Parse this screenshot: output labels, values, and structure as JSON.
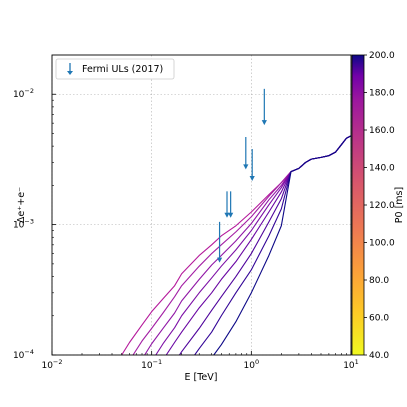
{
  "chart_data": {
    "type": "line",
    "xlabel": "E [TeV]",
    "ylabel": "Δe⁺+e⁻",
    "x_scale": "log",
    "y_scale": "log",
    "xlim": [
      0.01,
      10
    ],
    "ylim": [
      0.0001,
      0.02
    ],
    "grid": true,
    "legend_position": "top-left",
    "x_ticks": [
      {
        "value": 0.01,
        "base": "10",
        "exp": "−2"
      },
      {
        "value": 0.1,
        "base": "10",
        "exp": "−1"
      },
      {
        "value": 1,
        "base": "10",
        "exp": "0"
      },
      {
        "value": 10,
        "base": "10",
        "exp": "1"
      }
    ],
    "y_ticks": [
      {
        "value": 0.0001,
        "base": "10",
        "exp": "−4"
      },
      {
        "value": 0.001,
        "base": "10",
        "exp": "−3"
      },
      {
        "value": 0.01,
        "base": "10",
        "exp": "−2"
      }
    ],
    "upper_limits": {
      "name": "Fermi ULs (2017)",
      "color": "#1f77b4",
      "points": [
        {
          "x": 0.48,
          "y_top": 0.00105,
          "y": 0.00052
        },
        {
          "x": 0.57,
          "y_top": 0.0018,
          "y": 0.00115
        },
        {
          "x": 0.62,
          "y_top": 0.0018,
          "y": 0.00115
        },
        {
          "x": 0.88,
          "y_top": 0.0047,
          "y": 0.0027
        },
        {
          "x": 1.02,
          "y_top": 0.0038,
          "y": 0.0022
        },
        {
          "x": 1.35,
          "y_top": 0.011,
          "y": 0.0059
        }
      ]
    },
    "shared_tail": [
      [
        2.5,
        0.00255
      ],
      [
        3,
        0.0027
      ],
      [
        3.5,
        0.003
      ],
      [
        4,
        0.00318
      ],
      [
        5,
        0.00328
      ],
      [
        6,
        0.00338
      ],
      [
        7,
        0.0036
      ],
      [
        8,
        0.0041
      ],
      [
        9,
        0.0046
      ],
      [
        10,
        0.0048
      ]
    ],
    "series": [
      {
        "p0": 40,
        "color": "#b5199b",
        "points": [
          [
            0.05,
            0.0001
          ],
          [
            0.06,
            0.000125
          ],
          [
            0.08,
            0.00017
          ],
          [
            0.1,
            0.000215
          ],
          [
            0.13,
            0.00027
          ],
          [
            0.17,
            0.00034
          ],
          [
            0.2,
            0.00042
          ],
          [
            0.3,
            0.00058
          ],
          [
            0.4,
            0.0007
          ],
          [
            0.5,
            0.00082
          ],
          [
            0.7,
            0.00098
          ],
          [
            1,
            0.00125
          ],
          [
            1.5,
            0.0017
          ],
          [
            2,
            0.0021
          ],
          [
            2.5,
            0.00255
          ]
        ]
      },
      {
        "p0": 60,
        "color": "#a31fa4",
        "points": [
          [
            0.065,
            0.0001
          ],
          [
            0.08,
            0.000128
          ],
          [
            0.1,
            0.00016
          ],
          [
            0.13,
            0.00021
          ],
          [
            0.17,
            0.00028
          ],
          [
            0.2,
            0.00034
          ],
          [
            0.3,
            0.00048
          ],
          [
            0.4,
            0.0006
          ],
          [
            0.5,
            0.0007
          ],
          [
            0.7,
            0.00088
          ],
          [
            1,
            0.00115
          ],
          [
            1.5,
            0.00165
          ],
          [
            2,
            0.0021
          ],
          [
            2.5,
            0.00255
          ]
        ]
      },
      {
        "p0": 80,
        "color": "#9017a6",
        "points": [
          [
            0.085,
            0.0001
          ],
          [
            0.1,
            0.000122
          ],
          [
            0.13,
            0.00016
          ],
          [
            0.17,
            0.00021
          ],
          [
            0.2,
            0.00026
          ],
          [
            0.3,
            0.00038
          ],
          [
            0.4,
            0.00049
          ],
          [
            0.5,
            0.00058
          ],
          [
            0.7,
            0.00075
          ],
          [
            1,
            0.00102
          ],
          [
            1.5,
            0.00155
          ],
          [
            2,
            0.002
          ],
          [
            2.5,
            0.00255
          ]
        ]
      },
      {
        "p0": 100,
        "color": "#7c0fa6",
        "points": [
          [
            0.11,
            0.0001
          ],
          [
            0.13,
            0.000122
          ],
          [
            0.17,
            0.000162
          ],
          [
            0.2,
            0.0002
          ],
          [
            0.3,
            0.0003
          ],
          [
            0.4,
            0.00039
          ],
          [
            0.5,
            0.00048
          ],
          [
            0.7,
            0.00064
          ],
          [
            1,
            0.0009
          ],
          [
            1.5,
            0.00142
          ],
          [
            2,
            0.00192
          ],
          [
            2.5,
            0.00255
          ]
        ]
      },
      {
        "p0": 120,
        "color": "#6906a3",
        "points": [
          [
            0.14,
            0.0001
          ],
          [
            0.17,
            0.000125
          ],
          [
            0.2,
            0.00015
          ],
          [
            0.3,
            0.00023
          ],
          [
            0.4,
            0.0003
          ],
          [
            0.5,
            0.00038
          ],
          [
            0.7,
            0.00052
          ],
          [
            1,
            0.00077
          ],
          [
            1.5,
            0.00125
          ],
          [
            2,
            0.00178
          ],
          [
            2.5,
            0.00255
          ]
        ]
      },
      {
        "p0": 140,
        "color": "#4f049c",
        "points": [
          [
            0.19,
            0.0001
          ],
          [
            0.2,
            0.000106
          ],
          [
            0.3,
            0.00016
          ],
          [
            0.4,
            0.00022
          ],
          [
            0.5,
            0.00028
          ],
          [
            0.7,
            0.0004
          ],
          [
            1,
            0.0006
          ],
          [
            1.5,
            0.00105
          ],
          [
            2,
            0.00158
          ],
          [
            2.5,
            0.00255
          ]
        ]
      },
      {
        "p0": 160,
        "color": "#330597",
        "points": [
          [
            0.27,
            0.0001
          ],
          [
            0.3,
            0.000112
          ],
          [
            0.4,
            0.00015
          ],
          [
            0.5,
            0.0002
          ],
          [
            0.7,
            0.0003
          ],
          [
            1,
            0.00045
          ],
          [
            1.5,
            0.00082
          ],
          [
            2,
            0.00132
          ],
          [
            2.5,
            0.00255
          ]
        ]
      },
      {
        "p0": 200,
        "color": "#0d0887",
        "points": [
          [
            0.42,
            0.0001
          ],
          [
            0.5,
            0.00012
          ],
          [
            0.7,
            0.00018
          ],
          [
            1,
            0.0003
          ],
          [
            1.5,
            0.00058
          ],
          [
            2,
            0.00098
          ],
          [
            2.5,
            0.00255
          ]
        ]
      }
    ],
    "colorbar": {
      "label": "P0 [ms]",
      "min": 40,
      "max": 200,
      "ticks": [
        "40.0",
        "60.0",
        "80.0",
        "100.0",
        "120.0",
        "140.0",
        "160.0",
        "180.0",
        "200.0"
      ],
      "colormap": "plasma"
    }
  }
}
